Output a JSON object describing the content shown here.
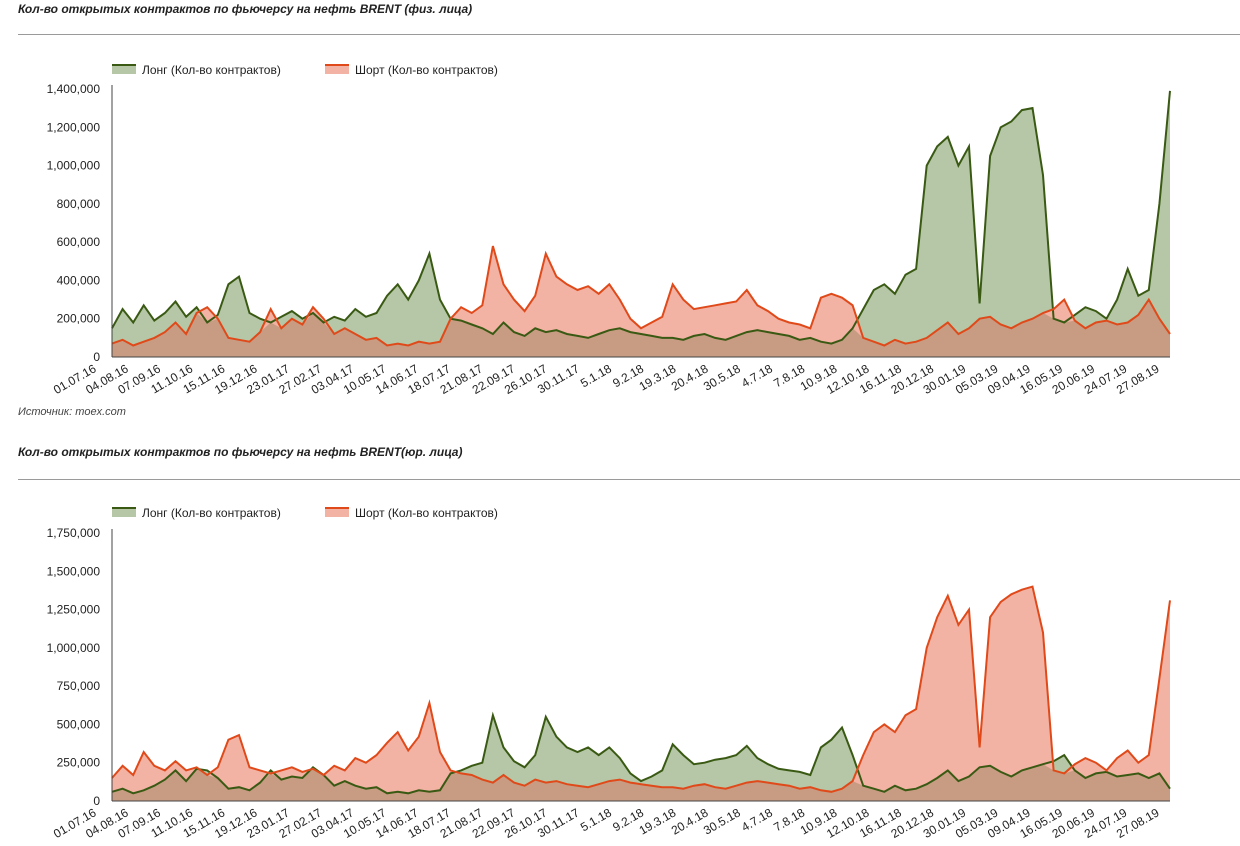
{
  "charts": [
    {
      "title": "Кол-во открытых контрактов по фьючерсу на нефть BRENT (физ. лица)",
      "source": "Источник: moex.com"
    },
    {
      "title": "Кол-во открытых контрактов по фьючерсу на нефть BRENT(юр. лица)",
      "source": ""
    }
  ],
  "colors": {
    "long_line": "#3a5a14",
    "long_fill": "#b5c7a6",
    "short_line": "#e04a1a",
    "short_fill": "#f2b2a4",
    "overlap_fill": "#c79c82",
    "axis": "#444444",
    "rule": "#9a9a9a"
  },
  "chart_data": [
    {
      "type": "area",
      "title": "Кол-во открытых контрактов по фьючерсу на нефть BRENT (физ. лица)",
      "legend_position": "top-left",
      "grid": false,
      "ylim": [
        0,
        1400000
      ],
      "yticks": [
        0,
        200000,
        400000,
        600000,
        800000,
        1000000,
        1200000,
        1400000
      ],
      "ytick_labels": [
        "0",
        "200,000",
        "400,000",
        "600,000",
        "800,000",
        "1,000,000",
        "1,200,000",
        "1,400,000"
      ],
      "xtick_labels": [
        "01.07.16",
        "04.08.16",
        "07.09.16",
        "11.10.16",
        "15.11.16",
        "19.12.16",
        "23.01.17",
        "27.02.17",
        "03.04.17",
        "10.05.17",
        "14.06.17",
        "18.07.17",
        "21.08.17",
        "22.09.17",
        "26.10.17",
        "30.11.17",
        "5.1.18",
        "9.2.18",
        "19.3.18",
        "20.4.18",
        "30.5.18",
        "4.7.18",
        "7.8.18",
        "10.9.18",
        "12.10.18",
        "16.11.18",
        "20.12.18",
        "30.01.19",
        "05.03.19",
        "09.04.19",
        "16.05.19",
        "20.06.19",
        "24.07.19",
        "27.08.19"
      ],
      "x_index_range": [
        0,
        100
      ],
      "series": [
        {
          "name": "Лонг (Кол-во контрактов)",
          "x": [
            0,
            1,
            2,
            3,
            4,
            5,
            6,
            7,
            8,
            9,
            10,
            11,
            12,
            13,
            14,
            15,
            16,
            17,
            18,
            19,
            20,
            21,
            22,
            23,
            24,
            25,
            26,
            27,
            28,
            29,
            30,
            31,
            32,
            33,
            34,
            35,
            36,
            37,
            38,
            39,
            40,
            41,
            42,
            43,
            44,
            45,
            46,
            47,
            48,
            49,
            50,
            51,
            52,
            53,
            54,
            55,
            56,
            57,
            58,
            59,
            60,
            61,
            62,
            63,
            64,
            65,
            66,
            67,
            68,
            69,
            70,
            71,
            72,
            73,
            74,
            75,
            76,
            77,
            78,
            79,
            80,
            81,
            82,
            83,
            84,
            85,
            86,
            87,
            88,
            89,
            90,
            91,
            92,
            93,
            94,
            95,
            96,
            97,
            98,
            99,
            100
          ],
          "values": [
            150000,
            250000,
            180000,
            270000,
            190000,
            230000,
            290000,
            210000,
            260000,
            180000,
            220000,
            380000,
            420000,
            230000,
            200000,
            180000,
            210000,
            240000,
            200000,
            230000,
            180000,
            210000,
            190000,
            250000,
            210000,
            230000,
            320000,
            380000,
            300000,
            400000,
            540000,
            300000,
            200000,
            190000,
            170000,
            150000,
            120000,
            180000,
            130000,
            110000,
            150000,
            130000,
            140000,
            120000,
            110000,
            100000,
            120000,
            140000,
            150000,
            130000,
            120000,
            110000,
            100000,
            100000,
            90000,
            110000,
            120000,
            100000,
            90000,
            110000,
            130000,
            140000,
            130000,
            120000,
            110000,
            90000,
            100000,
            80000,
            70000,
            90000,
            150000,
            250000,
            350000,
            380000,
            330000,
            430000,
            460000,
            1000000,
            1100000,
            1150000,
            1000000,
            1100000,
            280000,
            1050000,
            1200000,
            1230000,
            1290000,
            1300000,
            950000,
            200000,
            180000,
            220000,
            260000,
            240000,
            200000,
            300000,
            460000,
            320000,
            350000,
            800000,
            1390000
          ]
        },
        {
          "name": "Шорт (Кол-во контрактов)",
          "x": [
            0,
            1,
            2,
            3,
            4,
            5,
            6,
            7,
            8,
            9,
            10,
            11,
            12,
            13,
            14,
            15,
            16,
            17,
            18,
            19,
            20,
            21,
            22,
            23,
            24,
            25,
            26,
            27,
            28,
            29,
            30,
            31,
            32,
            33,
            34,
            35,
            36,
            37,
            38,
            39,
            40,
            41,
            42,
            43,
            44,
            45,
            46,
            47,
            48,
            49,
            50,
            51,
            52,
            53,
            54,
            55,
            56,
            57,
            58,
            59,
            60,
            61,
            62,
            63,
            64,
            65,
            66,
            67,
            68,
            69,
            70,
            71,
            72,
            73,
            74,
            75,
            76,
            77,
            78,
            79,
            80,
            81,
            82,
            83,
            84,
            85,
            86,
            87,
            88,
            89,
            90,
            91,
            92,
            93,
            94,
            95,
            96,
            97,
            98,
            99,
            100
          ],
          "values": [
            70000,
            90000,
            60000,
            80000,
            100000,
            130000,
            180000,
            120000,
            230000,
            260000,
            200000,
            100000,
            90000,
            80000,
            130000,
            250000,
            150000,
            200000,
            170000,
            260000,
            200000,
            120000,
            150000,
            120000,
            90000,
            100000,
            60000,
            70000,
            60000,
            80000,
            70000,
            80000,
            200000,
            260000,
            230000,
            270000,
            580000,
            380000,
            300000,
            240000,
            320000,
            540000,
            420000,
            380000,
            350000,
            370000,
            330000,
            380000,
            300000,
            200000,
            150000,
            180000,
            210000,
            380000,
            300000,
            250000,
            260000,
            270000,
            280000,
            290000,
            350000,
            270000,
            240000,
            200000,
            180000,
            170000,
            150000,
            310000,
            330000,
            310000,
            270000,
            100000,
            80000,
            60000,
            90000,
            70000,
            80000,
            100000,
            140000,
            180000,
            120000,
            150000,
            200000,
            210000,
            170000,
            150000,
            180000,
            200000,
            230000,
            250000,
            300000,
            190000,
            150000,
            180000,
            190000,
            170000,
            180000,
            220000,
            300000,
            200000,
            120000
          ]
        }
      ]
    },
    {
      "type": "area",
      "title": "Кол-во открытых контрактов по фьючерсу на нефть BRENT(юр. лица)",
      "legend_position": "top-left",
      "grid": false,
      "ylim": [
        0,
        1750000
      ],
      "yticks": [
        0,
        250000,
        500000,
        750000,
        1000000,
        1250000,
        1500000,
        1750000
      ],
      "ytick_labels": [
        "0",
        "250,000",
        "500,000",
        "750,000",
        "1,000,000",
        "1,250,000",
        "1,500,000",
        "1,750,000"
      ],
      "xtick_labels": [
        "01.07.16",
        "04.08.16",
        "07.09.16",
        "11.10.16",
        "15.11.16",
        "19.12.16",
        "23.01.17",
        "27.02.17",
        "03.04.17",
        "10.05.17",
        "14.06.17",
        "18.07.17",
        "21.08.17",
        "22.09.17",
        "26.10.17",
        "30.11.17",
        "5.1.18",
        "9.2.18",
        "19.3.18",
        "20.4.18",
        "30.5.18",
        "4.7.18",
        "7.8.18",
        "10.9.18",
        "12.10.18",
        "16.11.18",
        "20.12.18",
        "30.01.19",
        "05.03.19",
        "09.04.19",
        "16.05.19",
        "20.06.19",
        "24.07.19",
        "27.08.19"
      ],
      "x_index_range": [
        0,
        100
      ],
      "series": [
        {
          "name": "Лонг (Кол-во контрактов)",
          "x": [
            0,
            1,
            2,
            3,
            4,
            5,
            6,
            7,
            8,
            9,
            10,
            11,
            12,
            13,
            14,
            15,
            16,
            17,
            18,
            19,
            20,
            21,
            22,
            23,
            24,
            25,
            26,
            27,
            28,
            29,
            30,
            31,
            32,
            33,
            34,
            35,
            36,
            37,
            38,
            39,
            40,
            41,
            42,
            43,
            44,
            45,
            46,
            47,
            48,
            49,
            50,
            51,
            52,
            53,
            54,
            55,
            56,
            57,
            58,
            59,
            60,
            61,
            62,
            63,
            64,
            65,
            66,
            67,
            68,
            69,
            70,
            71,
            72,
            73,
            74,
            75,
            76,
            77,
            78,
            79,
            80,
            81,
            82,
            83,
            84,
            85,
            86,
            87,
            88,
            89,
            90,
            91,
            92,
            93,
            94,
            95,
            96,
            97,
            98,
            99,
            100
          ],
          "values": [
            60000,
            80000,
            50000,
            70000,
            100000,
            140000,
            200000,
            130000,
            210000,
            200000,
            150000,
            80000,
            90000,
            70000,
            120000,
            200000,
            140000,
            160000,
            150000,
            220000,
            170000,
            100000,
            130000,
            100000,
            80000,
            90000,
            50000,
            60000,
            50000,
            70000,
            60000,
            70000,
            180000,
            200000,
            230000,
            250000,
            560000,
            350000,
            260000,
            220000,
            300000,
            550000,
            420000,
            350000,
            320000,
            350000,
            300000,
            350000,
            280000,
            180000,
            130000,
            160000,
            200000,
            370000,
            300000,
            240000,
            250000,
            270000,
            280000,
            300000,
            360000,
            280000,
            240000,
            210000,
            200000,
            190000,
            170000,
            350000,
            400000,
            480000,
            300000,
            100000,
            80000,
            60000,
            100000,
            70000,
            80000,
            110000,
            150000,
            200000,
            130000,
            160000,
            220000,
            230000,
            190000,
            160000,
            200000,
            220000,
            240000,
            260000,
            300000,
            200000,
            150000,
            180000,
            190000,
            160000,
            170000,
            180000,
            150000,
            180000,
            80000
          ]
        },
        {
          "name": "Шорт (Кол-во контрактов)",
          "x": [
            0,
            1,
            2,
            3,
            4,
            5,
            6,
            7,
            8,
            9,
            10,
            11,
            12,
            13,
            14,
            15,
            16,
            17,
            18,
            19,
            20,
            21,
            22,
            23,
            24,
            25,
            26,
            27,
            28,
            29,
            30,
            31,
            32,
            33,
            34,
            35,
            36,
            37,
            38,
            39,
            40,
            41,
            42,
            43,
            44,
            45,
            46,
            47,
            48,
            49,
            50,
            51,
            52,
            53,
            54,
            55,
            56,
            57,
            58,
            59,
            60,
            61,
            62,
            63,
            64,
            65,
            66,
            67,
            68,
            69,
            70,
            71,
            72,
            73,
            74,
            75,
            76,
            77,
            78,
            79,
            80,
            81,
            82,
            83,
            84,
            85,
            86,
            87,
            88,
            89,
            90,
            91,
            92,
            93,
            94,
            95,
            96,
            97,
            98,
            99,
            100
          ],
          "values": [
            150000,
            230000,
            170000,
            320000,
            230000,
            200000,
            260000,
            200000,
            220000,
            170000,
            220000,
            400000,
            430000,
            220000,
            200000,
            180000,
            200000,
            220000,
            190000,
            210000,
            170000,
            230000,
            200000,
            280000,
            250000,
            300000,
            380000,
            450000,
            330000,
            420000,
            640000,
            320000,
            200000,
            180000,
            170000,
            140000,
            120000,
            170000,
            120000,
            100000,
            140000,
            120000,
            130000,
            110000,
            100000,
            90000,
            110000,
            130000,
            140000,
            120000,
            110000,
            100000,
            90000,
            90000,
            80000,
            100000,
            110000,
            90000,
            80000,
            100000,
            120000,
            130000,
            120000,
            110000,
            100000,
            80000,
            90000,
            70000,
            60000,
            80000,
            130000,
            300000,
            450000,
            500000,
            450000,
            560000,
            600000,
            1000000,
            1200000,
            1340000,
            1150000,
            1250000,
            350000,
            1200000,
            1300000,
            1350000,
            1380000,
            1400000,
            1100000,
            200000,
            180000,
            240000,
            280000,
            250000,
            200000,
            280000,
            330000,
            250000,
            300000,
            800000,
            1310000
          ]
        }
      ]
    }
  ]
}
